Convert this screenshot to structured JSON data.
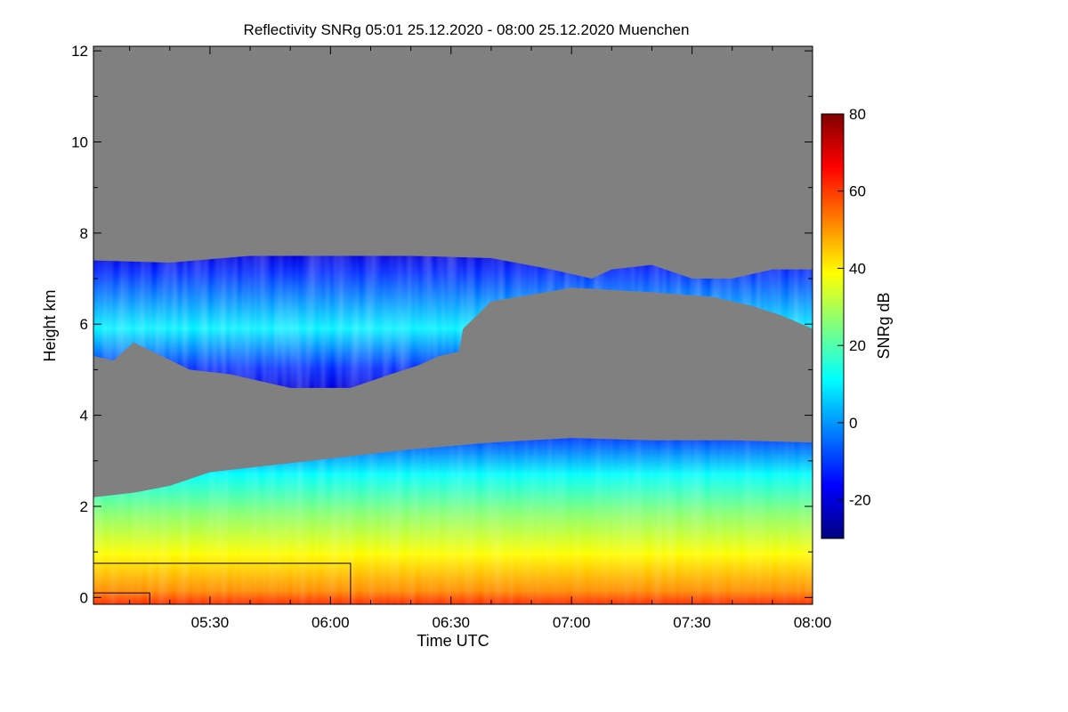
{
  "chart_data": {
    "type": "heatmap",
    "title": "Reflectivity SNRg   05:01 25.12.2020 - 08:00 25.12.2020 Muenchen",
    "xlabel": "Time UTC",
    "ylabel": "Height km",
    "x_range_minutes": [
      301,
      480
    ],
    "x_ticks": [
      {
        "minute": 330,
        "label": "05:30"
      },
      {
        "minute": 360,
        "label": "06:00"
      },
      {
        "minute": 390,
        "label": "06:30"
      },
      {
        "minute": 420,
        "label": "07:00"
      },
      {
        "minute": 450,
        "label": "07:30"
      },
      {
        "minute": 480,
        "label": "08:00"
      }
    ],
    "ylim": [
      -0.15,
      12.1
    ],
    "y_ticks": [
      {
        "value": 0,
        "label": "0"
      },
      {
        "value": 2,
        "label": "2"
      },
      {
        "value": 4,
        "label": "4"
      },
      {
        "value": 6,
        "label": "6"
      },
      {
        "value": 8,
        "label": "8"
      },
      {
        "value": 10,
        "label": "10"
      },
      {
        "value": 12,
        "label": "12"
      }
    ],
    "colorbar": {
      "label": "SNRg dB",
      "range": [
        -30,
        80
      ],
      "ticks": [
        {
          "value": -20,
          "label": "-20"
        },
        {
          "value": 0,
          "label": "0"
        },
        {
          "value": 20,
          "label": "20"
        },
        {
          "value": 40,
          "label": "40"
        },
        {
          "value": 60,
          "label": "60"
        },
        {
          "value": 80,
          "label": "80"
        }
      ]
    },
    "background_color": "#808080",
    "layers": [
      {
        "name": "upper cloud",
        "top_km": [
          [
            301,
            7.4
          ],
          [
            320,
            7.35
          ],
          [
            340,
            7.5
          ],
          [
            360,
            7.5
          ],
          [
            380,
            7.5
          ],
          [
            400,
            7.45
          ],
          [
            415,
            7.2
          ],
          [
            425,
            7.0
          ],
          [
            430,
            7.2
          ],
          [
            440,
            7.3
          ],
          [
            450,
            7.0
          ],
          [
            460,
            7.0
          ],
          [
            470,
            7.2
          ],
          [
            480,
            7.2
          ]
        ],
        "base_km": [
          [
            301,
            5.3
          ],
          [
            306,
            5.2
          ],
          [
            311,
            5.6
          ],
          [
            318,
            5.3
          ],
          [
            325,
            5.0
          ],
          [
            335,
            4.9
          ],
          [
            350,
            4.6
          ],
          [
            365,
            4.6
          ],
          [
            375,
            4.9
          ],
          [
            382,
            5.1
          ],
          [
            387,
            5.3
          ],
          [
            392,
            5.4
          ],
          [
            393,
            5.9
          ],
          [
            400,
            6.5
          ],
          [
            420,
            6.8
          ],
          [
            440,
            6.7
          ],
          [
            455,
            6.6
          ],
          [
            465,
            6.4
          ],
          [
            472,
            6.2
          ],
          [
            480,
            5.9
          ]
        ],
        "peak_snr_db": 15,
        "edge_snr_db": -20
      },
      {
        "name": "lower cloud / precipitation",
        "top_km": [
          [
            301,
            2.2
          ],
          [
            311,
            2.3
          ],
          [
            320,
            2.45
          ],
          [
            330,
            2.75
          ],
          [
            345,
            2.9
          ],
          [
            360,
            3.05
          ],
          [
            380,
            3.25
          ],
          [
            400,
            3.4
          ],
          [
            420,
            3.5
          ],
          [
            440,
            3.45
          ],
          [
            460,
            3.45
          ],
          [
            480,
            3.4
          ]
        ],
        "surface_snr_db": 62,
        "top_snr_db": -10
      }
    ],
    "annotations": [
      {
        "type": "box",
        "x": [
          301,
          365
        ],
        "y": [
          -0.15,
          0.75
        ]
      },
      {
        "type": "box",
        "x": [
          301,
          315
        ],
        "y": [
          -0.15,
          0.1
        ]
      }
    ]
  },
  "colors": {
    "background": "#ffffff",
    "no_signal": "#808080",
    "colormap": [
      "#00007f",
      "#0000ff",
      "#007fff",
      "#00ffff",
      "#7fff7f",
      "#ffff00",
      "#ff7f00",
      "#ff0000",
      "#7f0000"
    ]
  }
}
